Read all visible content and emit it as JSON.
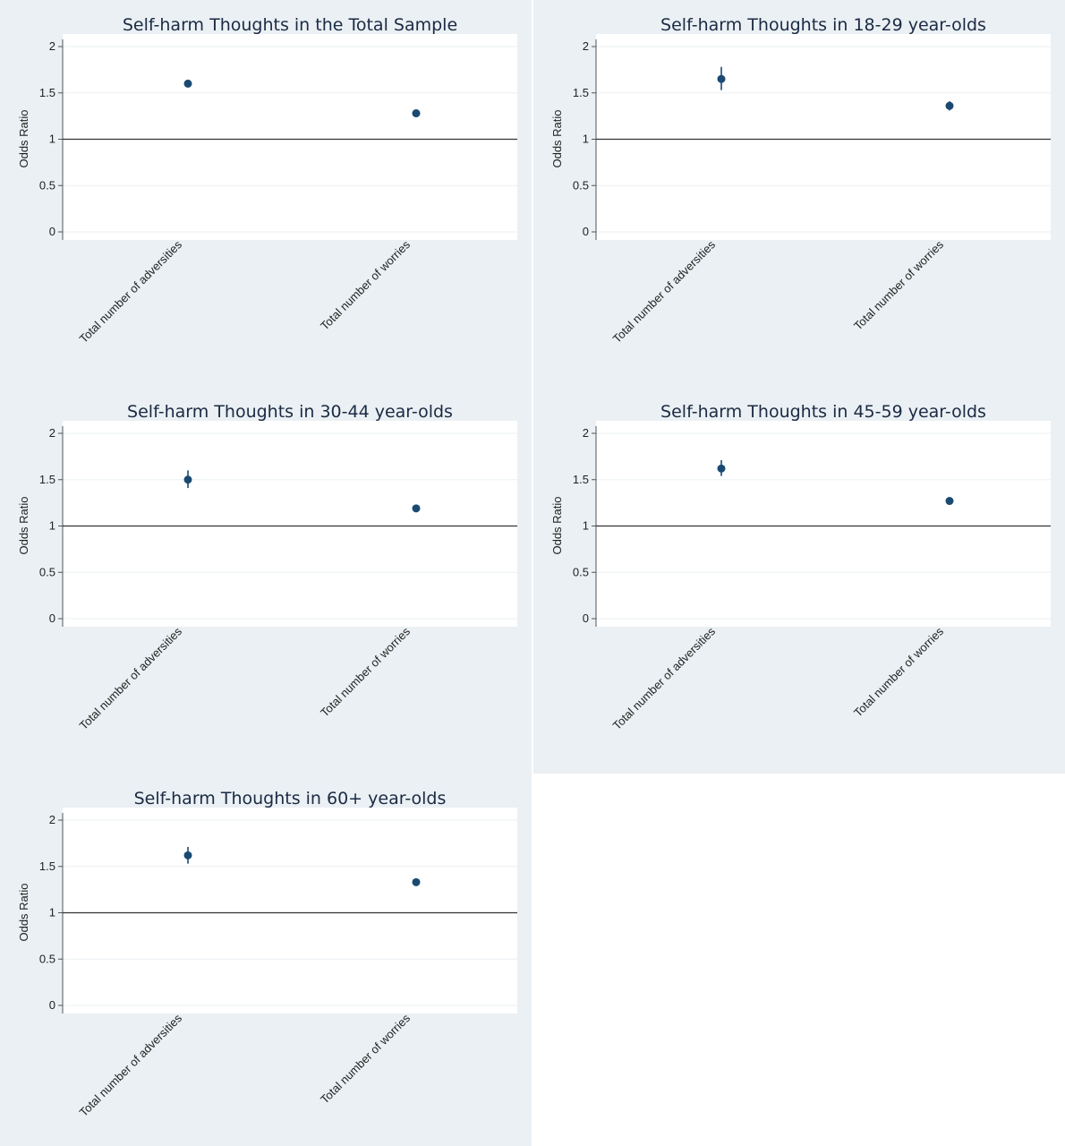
{
  "chart_data": [
    {
      "type": "scatter",
      "title": "Self-harm Thoughts in the Total Sample",
      "ylabel": "Odds Ratio",
      "yticks": [
        "0",
        "0.5",
        "1",
        "1.5",
        "2"
      ],
      "ylim": [
        0,
        2
      ],
      "reference_line": 1,
      "grid": true,
      "categories": [
        "Total number of adversities",
        "Total number of worries"
      ],
      "values": [
        1.6,
        1.28
      ],
      "ci_low": [
        1.57,
        1.26
      ],
      "ci_high": [
        1.63,
        1.3
      ]
    },
    {
      "type": "scatter",
      "title": "Self-harm Thoughts in 18-29 year-olds",
      "ylabel": "Odds Ratio",
      "yticks": [
        "0",
        "0.5",
        "1",
        "1.5",
        "2"
      ],
      "ylim": [
        0,
        2
      ],
      "reference_line": 1,
      "grid": true,
      "categories": [
        "Total number of adversities",
        "Total number of worries"
      ],
      "values": [
        1.65,
        1.36
      ],
      "ci_low": [
        1.53,
        1.31
      ],
      "ci_high": [
        1.78,
        1.41
      ]
    },
    {
      "type": "scatter",
      "title": "Self-harm Thoughts in 30-44 year-olds",
      "ylabel": "Odds Ratio",
      "yticks": [
        "0",
        "0.5",
        "1",
        "1.5",
        "2"
      ],
      "ylim": [
        0,
        2
      ],
      "reference_line": 1,
      "grid": true,
      "categories": [
        "Total number of adversities",
        "Total number of worries"
      ],
      "values": [
        1.5,
        1.19
      ],
      "ci_low": [
        1.41,
        1.16
      ],
      "ci_high": [
        1.6,
        1.22
      ]
    },
    {
      "type": "scatter",
      "title": "Self-harm Thoughts in 45-59 year-olds",
      "ylabel": "Odds Ratio",
      "yticks": [
        "0",
        "0.5",
        "1",
        "1.5",
        "2"
      ],
      "ylim": [
        0,
        2
      ],
      "reference_line": 1,
      "grid": true,
      "categories": [
        "Total number of adversities",
        "Total number of worries"
      ],
      "values": [
        1.62,
        1.27
      ],
      "ci_low": [
        1.54,
        1.24
      ],
      "ci_high": [
        1.71,
        1.3
      ]
    },
    {
      "type": "scatter",
      "title": "Self-harm Thoughts in 60+ year-olds",
      "ylabel": "Odds Ratio",
      "yticks": [
        "0",
        "0.5",
        "1",
        "1.5",
        "2"
      ],
      "ylim": [
        0,
        2
      ],
      "reference_line": 1,
      "grid": true,
      "categories": [
        "Total number of adversities",
        "Total number of worries"
      ],
      "values": [
        1.62,
        1.33
      ],
      "ci_low": [
        1.53,
        1.3
      ],
      "ci_high": [
        1.71,
        1.36
      ]
    }
  ],
  "colors": {
    "marker": "#1a4a72",
    "panel_background": "#eaf0f3",
    "plot_background": "#ffffff",
    "gridline": "#eaf0f3",
    "reference_line": "#333333"
  }
}
